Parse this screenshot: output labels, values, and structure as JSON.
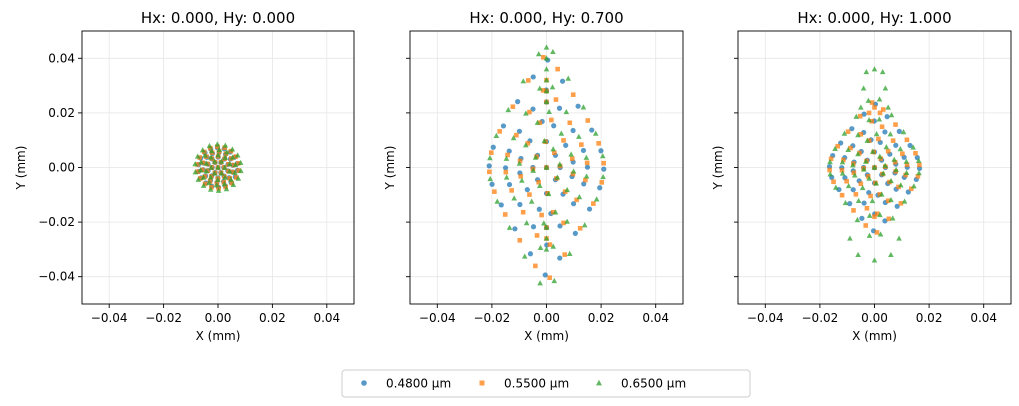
{
  "chart_data": {
    "type": "scatter",
    "panels": [
      {
        "title": "Hx: 0.000, Hy: 0.000",
        "xlabel": "X (mm)",
        "ylabel": "Y (mm)",
        "xlim": [
          -0.05,
          0.05
        ],
        "ylim": [
          -0.05,
          0.05
        ],
        "xticks": [
          "−0.04",
          "−0.02",
          "0.00",
          "0.02",
          "0.04"
        ],
        "yticks": [
          "−0.04",
          "−0.02",
          "0.00",
          "0.02",
          "0.04"
        ],
        "show_ytick_labels": true,
        "grid": true
      },
      {
        "title": "Hx: 0.000, Hy: 0.700",
        "xlabel": "X (mm)",
        "ylabel": "Y (mm)",
        "xlim": [
          -0.05,
          0.05
        ],
        "ylim": [
          -0.05,
          0.05
        ],
        "xticks": [
          "−0.04",
          "−0.02",
          "0.00",
          "0.02",
          "0.04"
        ],
        "yticks": [
          "−0.04",
          "−0.02",
          "0.00",
          "0.02",
          "0.04"
        ],
        "show_ytick_labels": false,
        "grid": true
      },
      {
        "title": "Hx: 0.000, Hy: 1.000",
        "xlabel": "X (mm)",
        "ylabel": "Y (mm)",
        "xlim": [
          -0.05,
          0.05
        ],
        "ylim": [
          -0.05,
          0.05
        ],
        "xticks": [
          "−0.04",
          "−0.02",
          "0.00",
          "0.02",
          "0.04"
        ],
        "yticks": [
          "−0.04",
          "−0.02",
          "0.00",
          "0.02",
          "0.04"
        ],
        "show_ytick_labels": false,
        "grid": true
      }
    ],
    "series": [
      {
        "name": "0.4800 µm",
        "marker": "circle",
        "color": "#1f77b4"
      },
      {
        "name": "0.5500 µm",
        "marker": "square",
        "color": "#ff7f0e"
      },
      {
        "name": "0.6500 µm",
        "marker": "triangle",
        "color": "#2ca02c"
      }
    ],
    "legend_position": "bottom-center"
  }
}
